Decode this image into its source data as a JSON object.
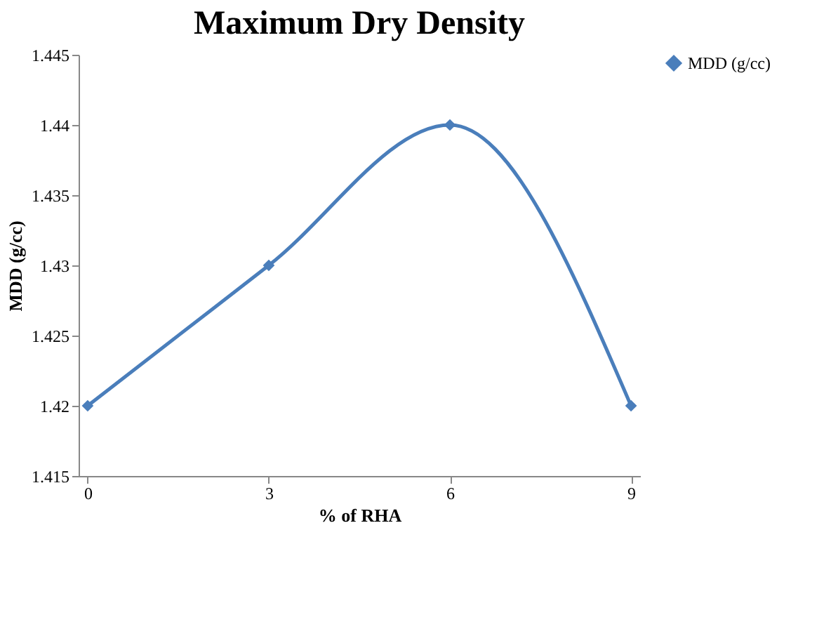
{
  "chart_data": {
    "type": "line",
    "title": "Maximum Dry Density",
    "xlabel": "%  of RHA",
    "ylabel": "MDD (g/cc)",
    "categories": [
      "0",
      "3",
      "6",
      "9"
    ],
    "series": [
      {
        "name": "MDD (g/cc)",
        "color": "#4a7ebb",
        "values": [
          1.42,
          1.43,
          1.44,
          1.42
        ]
      }
    ],
    "ylim": [
      1.415,
      1.445
    ],
    "yticks": [
      1.415,
      1.42,
      1.425,
      1.43,
      1.435,
      1.44,
      1.445
    ],
    "grid": false,
    "legend": "right",
    "marker": "diamond",
    "line_style": "solid"
  }
}
